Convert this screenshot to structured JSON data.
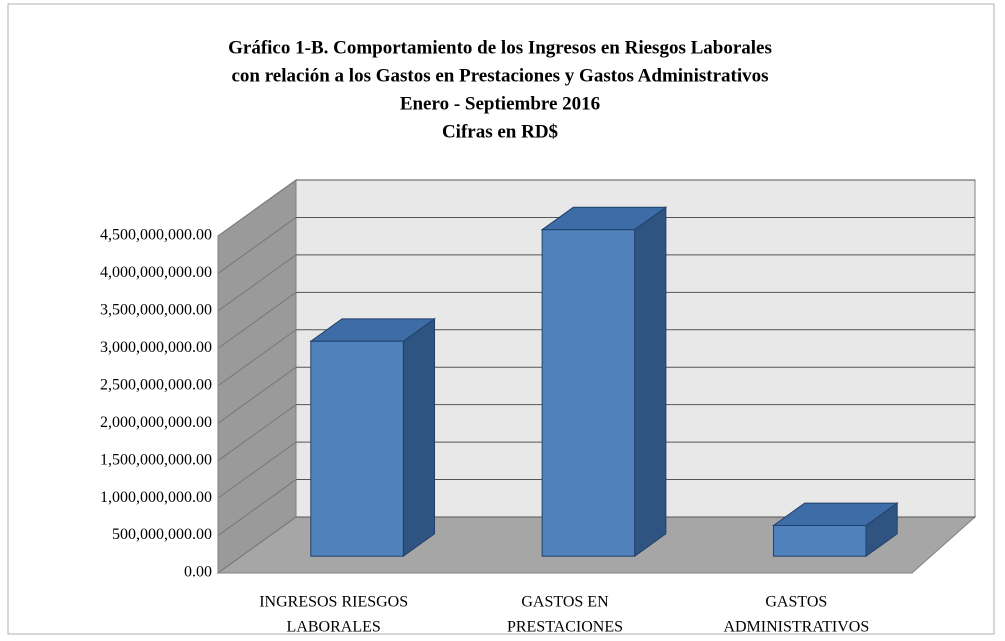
{
  "chart_data": {
    "type": "bar3d",
    "title": [
      "Gráfico 1-B. Comportamiento de los Ingresos en Riesgos Laborales",
      "con relación a los Gastos en Prestaciones y Gastos Administrativos",
      "Enero - Septiembre 2016",
      "Cifras en RD$"
    ],
    "categories": [
      [
        "INGRESOS RIESGOS",
        "LABORALES"
      ],
      [
        "GASTOS EN",
        "PRESTACIONES"
      ],
      [
        "GASTOS",
        "ADMINISTRATIVOS"
      ]
    ],
    "values": [
      2870000000,
      4360000000,
      410000000
    ],
    "color": "#4f81bd",
    "ylim": [
      0,
      4500000000
    ],
    "yticks": [
      {
        "value": 0,
        "label": "0.00"
      },
      {
        "value": 500000000,
        "label": "500,000,000.00"
      },
      {
        "value": 1000000000,
        "label": "1,000,000,000.00"
      },
      {
        "value": 1500000000,
        "label": "1,500,000,000.00"
      },
      {
        "value": 2000000000,
        "label": "2,000,000,000.00"
      },
      {
        "value": 2500000000,
        "label": "2,500,000,000.00"
      },
      {
        "value": 3000000000,
        "label": "3,000,000,000.00"
      },
      {
        "value": 3500000000,
        "label": "3,500,000,000.00"
      },
      {
        "value": 4000000000,
        "label": "4,000,000,000.00"
      },
      {
        "value": 4500000000,
        "label": "4,500,000,000.00"
      }
    ],
    "grid": true
  }
}
